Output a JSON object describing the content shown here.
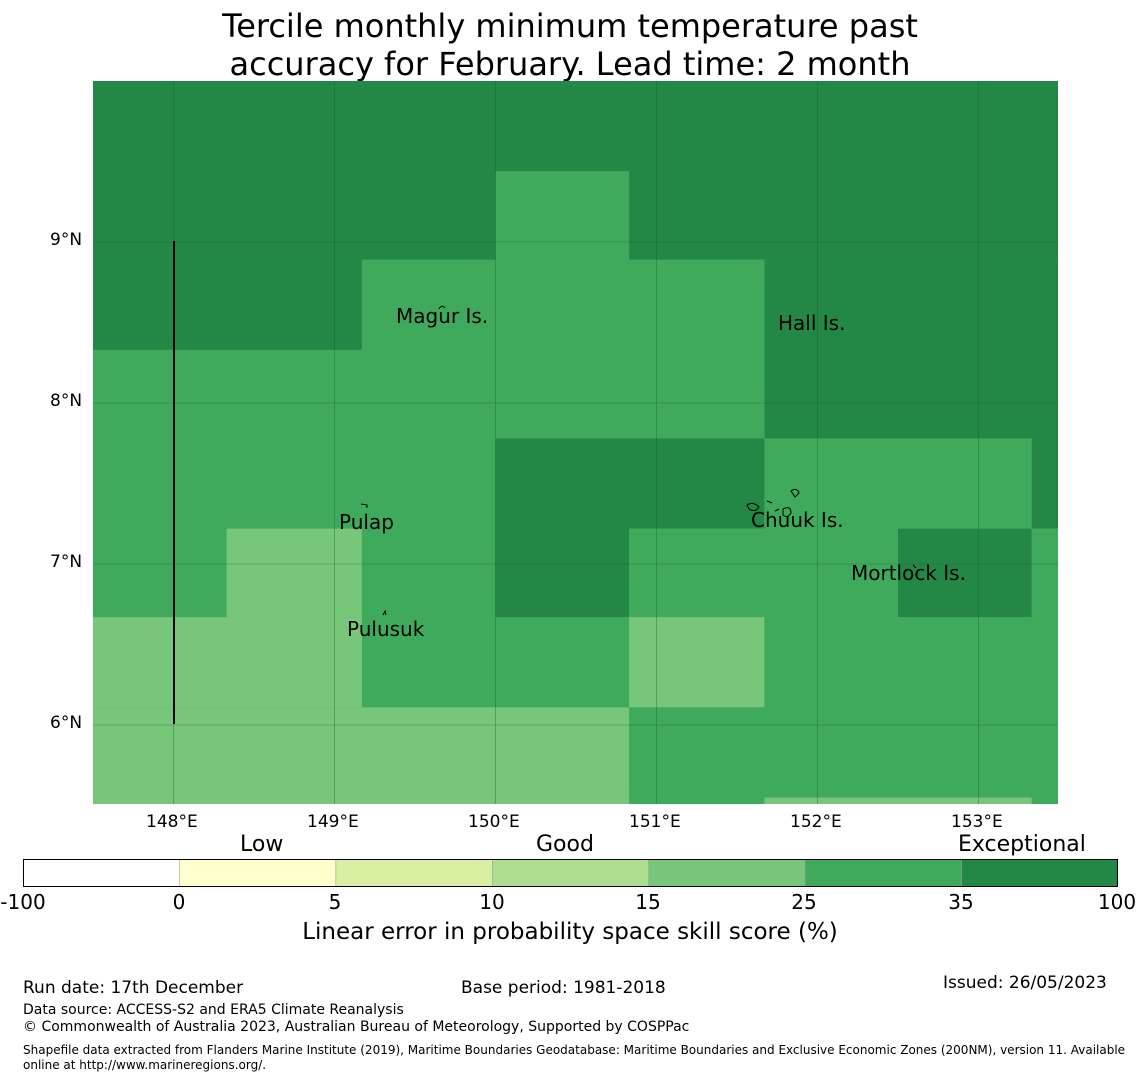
{
  "title": {
    "line1": "Tercile monthly minimum temperature past",
    "line2": "accuracy for February. Lead time: 2 month"
  },
  "map": {
    "colors": {
      "exceptional": "#238845",
      "good_high": "#40aa5c",
      "good_mid": "#78c679",
      "gridline": "#1a5c2a"
    },
    "lon_ticks": [
      "148°E",
      "149°E",
      "150°E",
      "151°E",
      "152°E",
      "153°E"
    ],
    "lat_ticks": [
      "9°N",
      "8°N",
      "7°N",
      "6°N"
    ],
    "places": [
      {
        "name": "Magur Is.",
        "key": "magur"
      },
      {
        "name": "Hall Is.",
        "key": "hall"
      },
      {
        "name": "Pulap",
        "key": "pulap"
      },
      {
        "name": "Chuuk Is.",
        "key": "chuuk"
      },
      {
        "name": "Mortlock Is.",
        "key": "mortlock"
      },
      {
        "name": "Pulusuk",
        "key": "pulusuk"
      }
    ],
    "cells": [
      {
        "x0": 147.5,
        "x1": 149.17,
        "y0": 8.33,
        "y1": 10.0,
        "c": "exceptional"
      },
      {
        "x0": 149.17,
        "x1": 150.0,
        "y0": 8.89,
        "y1": 10.0,
        "c": "exceptional"
      },
      {
        "x0": 150.0,
        "x1": 150.83,
        "y0": 9.44,
        "y1": 10.0,
        "c": "exceptional"
      },
      {
        "x0": 150.83,
        "x1": 153.5,
        "y0": 8.89,
        "y1": 10.0,
        "c": "exceptional"
      },
      {
        "x0": 151.67,
        "x1": 153.5,
        "y0": 7.78,
        "y1": 8.89,
        "c": "exceptional"
      },
      {
        "x0": 153.33,
        "x1": 153.5,
        "y0": 7.22,
        "y1": 7.78,
        "c": "exceptional"
      },
      {
        "x0": 150.0,
        "x1": 151.67,
        "y0": 7.22,
        "y1": 7.78,
        "c": "exceptional"
      },
      {
        "x0": 150.0,
        "x1": 150.83,
        "y0": 6.67,
        "y1": 7.22,
        "c": "exceptional"
      },
      {
        "x0": 152.5,
        "x1": 153.33,
        "y0": 6.67,
        "y1": 7.22,
        "c": "exceptional"
      },
      {
        "x0": 149.17,
        "x1": 151.67,
        "y0": 7.78,
        "y1": 8.89,
        "c": "good_high"
      },
      {
        "x0": 150.0,
        "x1": 150.83,
        "y0": 8.89,
        "y1": 9.44,
        "c": "good_high"
      },
      {
        "x0": 147.5,
        "x1": 149.17,
        "y0": 7.78,
        "y1": 8.33,
        "c": "good_high"
      },
      {
        "x0": 147.5,
        "x1": 150.0,
        "y0": 7.22,
        "y1": 7.78,
        "c": "good_high"
      },
      {
        "x0": 147.5,
        "x1": 148.33,
        "y0": 6.67,
        "y1": 7.22,
        "c": "good_high"
      },
      {
        "x0": 149.17,
        "x1": 150.0,
        "y0": 6.11,
        "y1": 7.22,
        "c": "good_high"
      },
      {
        "x0": 150.0,
        "x1": 150.83,
        "y0": 6.11,
        "y1": 6.67,
        "c": "good_high"
      },
      {
        "x0": 150.83,
        "x1": 152.5,
        "y0": 6.67,
        "y1": 7.22,
        "c": "good_high"
      },
      {
        "x0": 151.67,
        "x1": 153.33,
        "y0": 7.22,
        "y1": 7.78,
        "c": "good_high"
      },
      {
        "x0": 153.33,
        "x1": 153.5,
        "y0": 6.67,
        "y1": 7.22,
        "c": "good_high"
      },
      {
        "x0": 151.67,
        "x1": 153.5,
        "y0": 6.11,
        "y1": 6.67,
        "c": "good_high"
      },
      {
        "x0": 150.83,
        "x1": 153.5,
        "y0": 5.6,
        "y1": 6.11,
        "c": "good_high"
      },
      {
        "x0": 148.33,
        "x1": 149.17,
        "y0": 6.67,
        "y1": 7.22,
        "c": "good_mid"
      },
      {
        "x0": 147.5,
        "x1": 149.17,
        "y0": 6.11,
        "y1": 6.67,
        "c": "good_mid"
      },
      {
        "x0": 150.83,
        "x1": 151.67,
        "y0": 6.11,
        "y1": 6.67,
        "c": "good_mid"
      },
      {
        "x0": 147.5,
        "x1": 150.83,
        "y0": 5.5,
        "y1": 6.11,
        "c": "good_mid"
      },
      {
        "x0": 151.67,
        "x1": 153.33,
        "y0": 5.5,
        "y1": 5.55,
        "c": "good_mid"
      }
    ]
  },
  "colorbar": {
    "category_low": "Low",
    "category_good": "Good",
    "category_exceptional": "Exceptional",
    "ticks": [
      "-100",
      "0",
      "5",
      "10",
      "15",
      "25",
      "35",
      "100"
    ],
    "colors": [
      "#ffffff",
      "#ffffcc",
      "#d9f0a3",
      "#addd8e",
      "#78c679",
      "#40aa5c",
      "#238845"
    ],
    "label": "Linear error in probability space skill score (%)"
  },
  "footer": {
    "run_date": "Run date: 17th December",
    "base_period": "Base period: 1981-2018",
    "issued": "Issued: 26/05/2023",
    "data_source": "Data source: ACCESS-S2 and ERA5 Climate Reanalysis",
    "copyright": "© Commonwealth of Australia 2023, Australian Bureau of Meteorology, Supported by COSPPac",
    "shapefile": "Shapefile data extracted from Flanders Marine Institute (2019), Maritime Boundaries Geodatabase: Maritime Boundaries and Exclusive Economic Zones (200NM), version 11. Available online at http://www.marineregions.org/."
  }
}
